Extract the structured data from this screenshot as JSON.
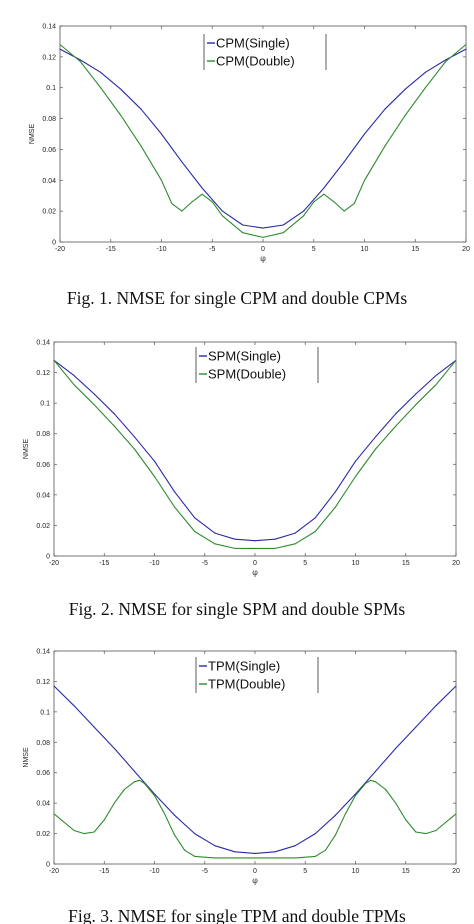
{
  "chart_data": [
    {
      "type": "line",
      "caption": "Fig. 1. NMSE for single CPM and double CPMs",
      "xlabel": "φ",
      "ylabel": "NMSE",
      "xlim": [
        -20,
        20
      ],
      "ylim": [
        0,
        0.14
      ],
      "xticks": [
        -20,
        -15,
        -10,
        -5,
        0,
        5,
        10,
        15,
        20
      ],
      "yticks": [
        0,
        0.02,
        0.04,
        0.06,
        0.08,
        0.1,
        0.12,
        0.14
      ],
      "xtick_labels": [
        "-20",
        "-15",
        "-10",
        "-5",
        "0",
        "5",
        "10",
        "15",
        "20"
      ],
      "ytick_labels": [
        "0",
        "0.02",
        "0.04",
        "0.06",
        "0.08",
        "0.1",
        "0.12",
        "0.14"
      ],
      "grid": false,
      "legend": "top-center",
      "series": [
        {
          "name": "CPM(Single)",
          "color": "#2a2aa8",
          "x": [
            -20,
            -18,
            -16,
            -14,
            -12,
            -10,
            -8,
            -6,
            -4,
            -2,
            0,
            2,
            4,
            6,
            8,
            10,
            12,
            14,
            16,
            18,
            20
          ],
          "y": [
            0.125,
            0.118,
            0.11,
            0.099,
            0.086,
            0.07,
            0.052,
            0.035,
            0.02,
            0.011,
            0.009,
            0.011,
            0.02,
            0.035,
            0.052,
            0.07,
            0.086,
            0.099,
            0.11,
            0.118,
            0.125
          ]
        },
        {
          "name": "CPM(Double)",
          "color": "#2e8b2e",
          "x": [
            -20,
            -18,
            -16,
            -14,
            -12,
            -10,
            -9,
            -8,
            -7,
            -6,
            -5,
            -4,
            -2,
            0,
            2,
            4,
            5,
            6,
            7,
            8,
            9,
            10,
            12,
            14,
            16,
            18,
            20
          ],
          "y": [
            0.128,
            0.117,
            0.1,
            0.082,
            0.062,
            0.04,
            0.025,
            0.02,
            0.026,
            0.031,
            0.026,
            0.017,
            0.006,
            0.003,
            0.006,
            0.017,
            0.026,
            0.031,
            0.026,
            0.02,
            0.025,
            0.04,
            0.062,
            0.082,
            0.1,
            0.117,
            0.128
          ]
        }
      ]
    },
    {
      "type": "line",
      "caption": "Fig. 2. NMSE for single SPM and double SPMs",
      "xlabel": "φ",
      "ylabel": "NMSE",
      "xlim": [
        -20,
        20
      ],
      "ylim": [
        0,
        0.14
      ],
      "xticks": [
        -20,
        -15,
        -10,
        -5,
        0,
        5,
        10,
        15,
        20
      ],
      "yticks": [
        0,
        0.02,
        0.04,
        0.06,
        0.08,
        0.1,
        0.12,
        0.14
      ],
      "xtick_labels": [
        "-20",
        "-15",
        "-10",
        "-5",
        "0",
        "5",
        "10",
        "15",
        "20"
      ],
      "ytick_labels": [
        "0",
        "0.02",
        "0.04",
        "0.06",
        "0.08",
        "0.1",
        "0.12",
        "0.14"
      ],
      "grid": false,
      "legend": "top-center",
      "series": [
        {
          "name": "SPM(Single)",
          "color": "#2a2aa8",
          "x": [
            -20,
            -18,
            -16,
            -14,
            -12,
            -10,
            -8,
            -6,
            -4,
            -2,
            0,
            2,
            4,
            6,
            8,
            10,
            12,
            14,
            16,
            18,
            20
          ],
          "y": [
            0.128,
            0.118,
            0.106,
            0.093,
            0.078,
            0.062,
            0.042,
            0.025,
            0.015,
            0.011,
            0.01,
            0.011,
            0.015,
            0.025,
            0.042,
            0.062,
            0.078,
            0.093,
            0.106,
            0.118,
            0.128
          ]
        },
        {
          "name": "SPM(Double)",
          "color": "#2e8b2e",
          "x": [
            -20,
            -18,
            -16,
            -14,
            -12,
            -10,
            -8,
            -6,
            -4,
            -2,
            0,
            2,
            4,
            6,
            8,
            10,
            12,
            14,
            16,
            18,
            20
          ],
          "y": [
            0.128,
            0.112,
            0.099,
            0.085,
            0.07,
            0.052,
            0.032,
            0.016,
            0.008,
            0.005,
            0.005,
            0.005,
            0.008,
            0.016,
            0.032,
            0.052,
            0.07,
            0.085,
            0.099,
            0.112,
            0.128
          ]
        }
      ]
    },
    {
      "type": "line",
      "caption": "Fig. 3. NMSE for single TPM and double TPMs",
      "xlabel": "φ",
      "ylabel": "NMSE",
      "xlim": [
        -20,
        20
      ],
      "ylim": [
        0,
        0.14
      ],
      "xticks": [
        -20,
        -15,
        -10,
        -5,
        0,
        5,
        10,
        15,
        20
      ],
      "yticks": [
        0,
        0.02,
        0.04,
        0.06,
        0.08,
        0.1,
        0.12,
        0.14
      ],
      "xtick_labels": [
        "-20",
        "-15",
        "-10",
        "-5",
        "0",
        "5",
        "10",
        "15",
        "20"
      ],
      "ytick_labels": [
        "0",
        "0.02",
        "0.04",
        "0.06",
        "0.08",
        "0.1",
        "0.12",
        "0.14"
      ],
      "grid": false,
      "legend": "top-center",
      "series": [
        {
          "name": "TPM(Single)",
          "color": "#2a2aa8",
          "x": [
            -20,
            -18,
            -16,
            -14,
            -12,
            -10,
            -8,
            -6,
            -4,
            -2,
            0,
            2,
            4,
            6,
            8,
            10,
            12,
            14,
            16,
            18,
            20
          ],
          "y": [
            0.117,
            0.104,
            0.09,
            0.076,
            0.061,
            0.046,
            0.032,
            0.02,
            0.012,
            0.008,
            0.007,
            0.008,
            0.012,
            0.02,
            0.032,
            0.046,
            0.061,
            0.076,
            0.09,
            0.104,
            0.117
          ]
        },
        {
          "name": "TPM(Double)",
          "color": "#2e8b2e",
          "x": [
            -20,
            -18,
            -17,
            -16,
            -15,
            -14,
            -13,
            -12,
            -11.5,
            -11,
            -10,
            -9,
            -8,
            -7,
            -6,
            -4,
            -2,
            0,
            2,
            4,
            6,
            7,
            8,
            9,
            10,
            11,
            11.5,
            12,
            13,
            14,
            15,
            16,
            17,
            18,
            20
          ],
          "y": [
            0.033,
            0.022,
            0.02,
            0.021,
            0.029,
            0.04,
            0.049,
            0.054,
            0.055,
            0.053,
            0.045,
            0.033,
            0.019,
            0.009,
            0.005,
            0.004,
            0.004,
            0.004,
            0.004,
            0.004,
            0.005,
            0.009,
            0.019,
            0.033,
            0.045,
            0.053,
            0.055,
            0.054,
            0.049,
            0.04,
            0.029,
            0.021,
            0.02,
            0.022,
            0.033
          ]
        }
      ]
    }
  ]
}
